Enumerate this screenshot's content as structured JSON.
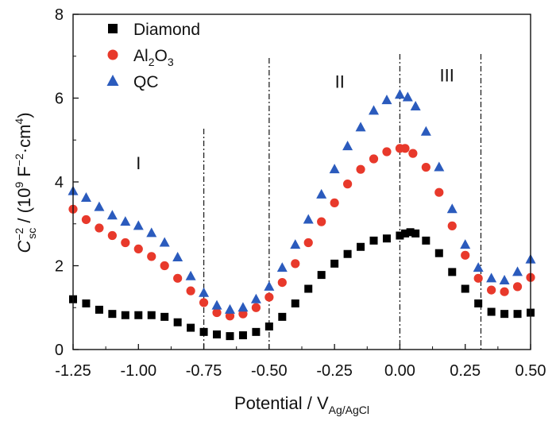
{
  "chart_data": {
    "type": "scatter",
    "title": "",
    "xlabel": {
      "main": "Potential / V",
      "sub": "Ag/AgCl"
    },
    "ylabel": {
      "c": "C",
      "sup": "−2",
      "sub": "sc",
      "rest": " / (10",
      "nine": "9",
      "f": " F",
      "fsup": "−2",
      "cm": "·cm",
      "cmsup": "4",
      "close": ")"
    },
    "xlim": [
      -1.25,
      0.5
    ],
    "ylim": [
      0,
      8
    ],
    "xticks": [
      -1.25,
      -1.0,
      -0.75,
      -0.5,
      -0.25,
      0.0,
      0.25,
      0.5
    ],
    "xtick_labels": [
      "-1.25",
      "-1.00",
      "-0.75",
      "-0.50",
      "-0.25",
      "0.00",
      "0.25",
      "0.50"
    ],
    "yticks": [
      0,
      2,
      4,
      6,
      8
    ],
    "ytick_labels": [
      "0",
      "2",
      "4",
      "6",
      "8"
    ],
    "grid": false,
    "legend_position": "top-left",
    "region_lines": [
      -0.75,
      -0.5,
      0.0,
      0.31
    ],
    "regions": [
      {
        "label": "I",
        "x": -1.0,
        "y": 4.3
      },
      {
        "label": "II",
        "x": -0.23,
        "y": 6.25
      },
      {
        "label": "III",
        "x": 0.18,
        "y": 6.4
      }
    ],
    "series": [
      {
        "name": "Diamond",
        "name_parts": [
          "Diamond"
        ],
        "marker": "square",
        "color": "#000000",
        "points": [
          [
            -1.25,
            1.2
          ],
          [
            -1.2,
            1.1
          ],
          [
            -1.15,
            0.95
          ],
          [
            -1.1,
            0.85
          ],
          [
            -1.05,
            0.82
          ],
          [
            -1.0,
            0.82
          ],
          [
            -0.95,
            0.82
          ],
          [
            -0.9,
            0.78
          ],
          [
            -0.85,
            0.65
          ],
          [
            -0.8,
            0.52
          ],
          [
            -0.75,
            0.42
          ],
          [
            -0.7,
            0.36
          ],
          [
            -0.65,
            0.32
          ],
          [
            -0.6,
            0.34
          ],
          [
            -0.55,
            0.42
          ],
          [
            -0.5,
            0.55
          ],
          [
            -0.45,
            0.78
          ],
          [
            -0.4,
            1.1
          ],
          [
            -0.35,
            1.45
          ],
          [
            -0.3,
            1.78
          ],
          [
            -0.25,
            2.05
          ],
          [
            -0.2,
            2.28
          ],
          [
            -0.15,
            2.45
          ],
          [
            -0.1,
            2.6
          ],
          [
            -0.05,
            2.65
          ],
          [
            0.0,
            2.72
          ],
          [
            0.02,
            2.77
          ],
          [
            0.04,
            2.8
          ],
          [
            0.06,
            2.77
          ],
          [
            0.1,
            2.6
          ],
          [
            0.15,
            2.3
          ],
          [
            0.2,
            1.85
          ],
          [
            0.25,
            1.45
          ],
          [
            0.3,
            1.1
          ],
          [
            0.35,
            0.9
          ],
          [
            0.4,
            0.85
          ],
          [
            0.45,
            0.85
          ],
          [
            0.5,
            0.88
          ]
        ]
      },
      {
        "name": "Al2O3",
        "name_parts": [
          "Al",
          "2",
          "O",
          "3"
        ],
        "marker": "circle",
        "color": "#e8392b",
        "points": [
          [
            -1.25,
            3.35
          ],
          [
            -1.2,
            3.1
          ],
          [
            -1.15,
            2.9
          ],
          [
            -1.1,
            2.72
          ],
          [
            -1.05,
            2.55
          ],
          [
            -1.0,
            2.4
          ],
          [
            -0.95,
            2.22
          ],
          [
            -0.9,
            2.0
          ],
          [
            -0.85,
            1.7
          ],
          [
            -0.8,
            1.4
          ],
          [
            -0.75,
            1.12
          ],
          [
            -0.7,
            0.88
          ],
          [
            -0.65,
            0.8
          ],
          [
            -0.6,
            0.85
          ],
          [
            -0.55,
            1.0
          ],
          [
            -0.5,
            1.25
          ],
          [
            -0.45,
            1.6
          ],
          [
            -0.4,
            2.05
          ],
          [
            -0.35,
            2.55
          ],
          [
            -0.3,
            3.05
          ],
          [
            -0.25,
            3.5
          ],
          [
            -0.2,
            3.95
          ],
          [
            -0.15,
            4.3
          ],
          [
            -0.1,
            4.55
          ],
          [
            -0.05,
            4.72
          ],
          [
            0.0,
            4.8
          ],
          [
            0.02,
            4.8
          ],
          [
            0.05,
            4.68
          ],
          [
            0.1,
            4.35
          ],
          [
            0.15,
            3.75
          ],
          [
            0.2,
            2.95
          ],
          [
            0.25,
            2.25
          ],
          [
            0.3,
            1.7
          ],
          [
            0.35,
            1.42
          ],
          [
            0.4,
            1.38
          ],
          [
            0.45,
            1.5
          ],
          [
            0.5,
            1.72
          ]
        ]
      },
      {
        "name": "QC",
        "name_parts": [
          "QC"
        ],
        "marker": "triangle",
        "color": "#2b5bbd",
        "points": [
          [
            -1.25,
            3.78
          ],
          [
            -1.2,
            3.62
          ],
          [
            -1.15,
            3.4
          ],
          [
            -1.1,
            3.2
          ],
          [
            -1.05,
            3.05
          ],
          [
            -1.0,
            2.95
          ],
          [
            -0.95,
            2.78
          ],
          [
            -0.9,
            2.55
          ],
          [
            -0.85,
            2.2
          ],
          [
            -0.8,
            1.75
          ],
          [
            -0.75,
            1.35
          ],
          [
            -0.7,
            1.05
          ],
          [
            -0.65,
            0.95
          ],
          [
            -0.6,
            1.0
          ],
          [
            -0.55,
            1.2
          ],
          [
            -0.5,
            1.5
          ],
          [
            -0.45,
            1.95
          ],
          [
            -0.4,
            2.5
          ],
          [
            -0.35,
            3.1
          ],
          [
            -0.3,
            3.7
          ],
          [
            -0.25,
            4.3
          ],
          [
            -0.2,
            4.85
          ],
          [
            -0.15,
            5.3
          ],
          [
            -0.1,
            5.7
          ],
          [
            -0.05,
            5.95
          ],
          [
            0.0,
            6.08
          ],
          [
            0.03,
            6.02
          ],
          [
            0.06,
            5.8
          ],
          [
            0.1,
            5.2
          ],
          [
            0.15,
            4.35
          ],
          [
            0.2,
            3.35
          ],
          [
            0.25,
            2.5
          ],
          [
            0.3,
            1.95
          ],
          [
            0.35,
            1.7
          ],
          [
            0.4,
            1.65
          ],
          [
            0.45,
            1.85
          ],
          [
            0.5,
            2.15
          ]
        ]
      }
    ]
  }
}
